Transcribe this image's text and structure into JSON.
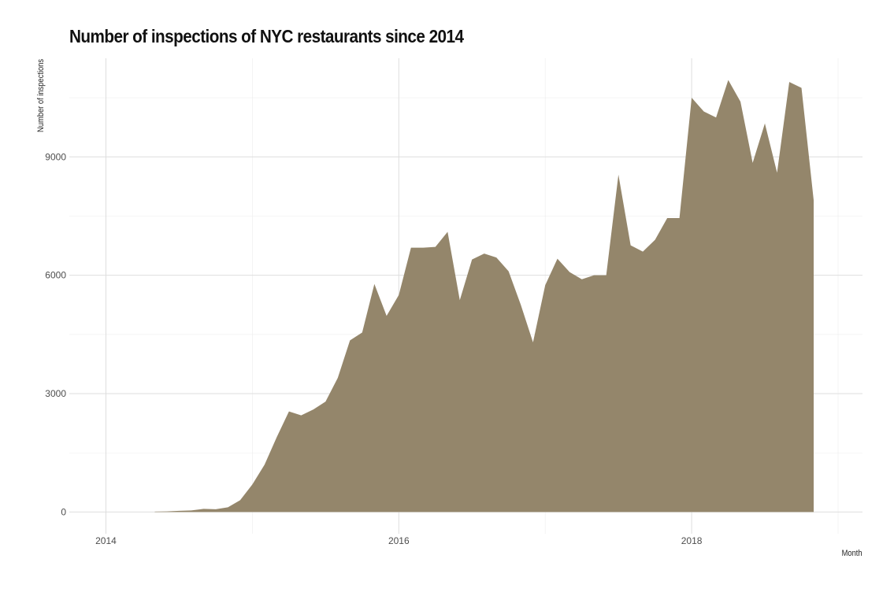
{
  "chart_data": {
    "type": "area",
    "title": "Number of inspections of NYC restaurants since 2014",
    "xlabel": "Month",
    "ylabel": "Number of inspections",
    "x_ticks": [
      "2014",
      "2016",
      "2018"
    ],
    "y_ticks": [
      0,
      3000,
      6000,
      9000
    ],
    "ylim": [
      -550,
      11500
    ],
    "xlim": [
      "2013-10",
      "2019-03"
    ],
    "grid": true,
    "fill_color": "#94866b",
    "series": [
      {
        "x": [
          "2014-05",
          "2014-06",
          "2014-07",
          "2014-08",
          "2014-09",
          "2014-10",
          "2014-11",
          "2014-12",
          "2015-01",
          "2015-02",
          "2015-03",
          "2015-04",
          "2015-05",
          "2015-06",
          "2015-07",
          "2015-08",
          "2015-09",
          "2015-10",
          "2015-11",
          "2015-12",
          "2016-01",
          "2016-02",
          "2016-03",
          "2016-04",
          "2016-05",
          "2016-06",
          "2016-07",
          "2016-08",
          "2016-09",
          "2016-10",
          "2016-11",
          "2016-12",
          "2017-01",
          "2017-02",
          "2017-03",
          "2017-04",
          "2017-05",
          "2017-06",
          "2017-07",
          "2017-08",
          "2017-09",
          "2017-10",
          "2017-11",
          "2017-12",
          "2018-01",
          "2018-02",
          "2018-03",
          "2018-04",
          "2018-05",
          "2018-06",
          "2018-07",
          "2018-08",
          "2018-09",
          "2018-10",
          "2018-11"
        ],
        "values": [
          10,
          15,
          30,
          40,
          80,
          70,
          120,
          300,
          700,
          1200,
          1900,
          2550,
          2450,
          2600,
          2800,
          3400,
          4350,
          4550,
          5780,
          4970,
          5500,
          6700,
          6700,
          6720,
          7100,
          5370,
          6400,
          6550,
          6450,
          6100,
          5250,
          4300,
          5750,
          6420,
          6080,
          5900,
          6000,
          6000,
          8550,
          6760,
          6600,
          6900,
          7450,
          7450,
          10500,
          10150,
          10000,
          10950,
          10400,
          8850,
          9850,
          8600,
          10900,
          10750,
          7900
        ]
      }
    ]
  }
}
